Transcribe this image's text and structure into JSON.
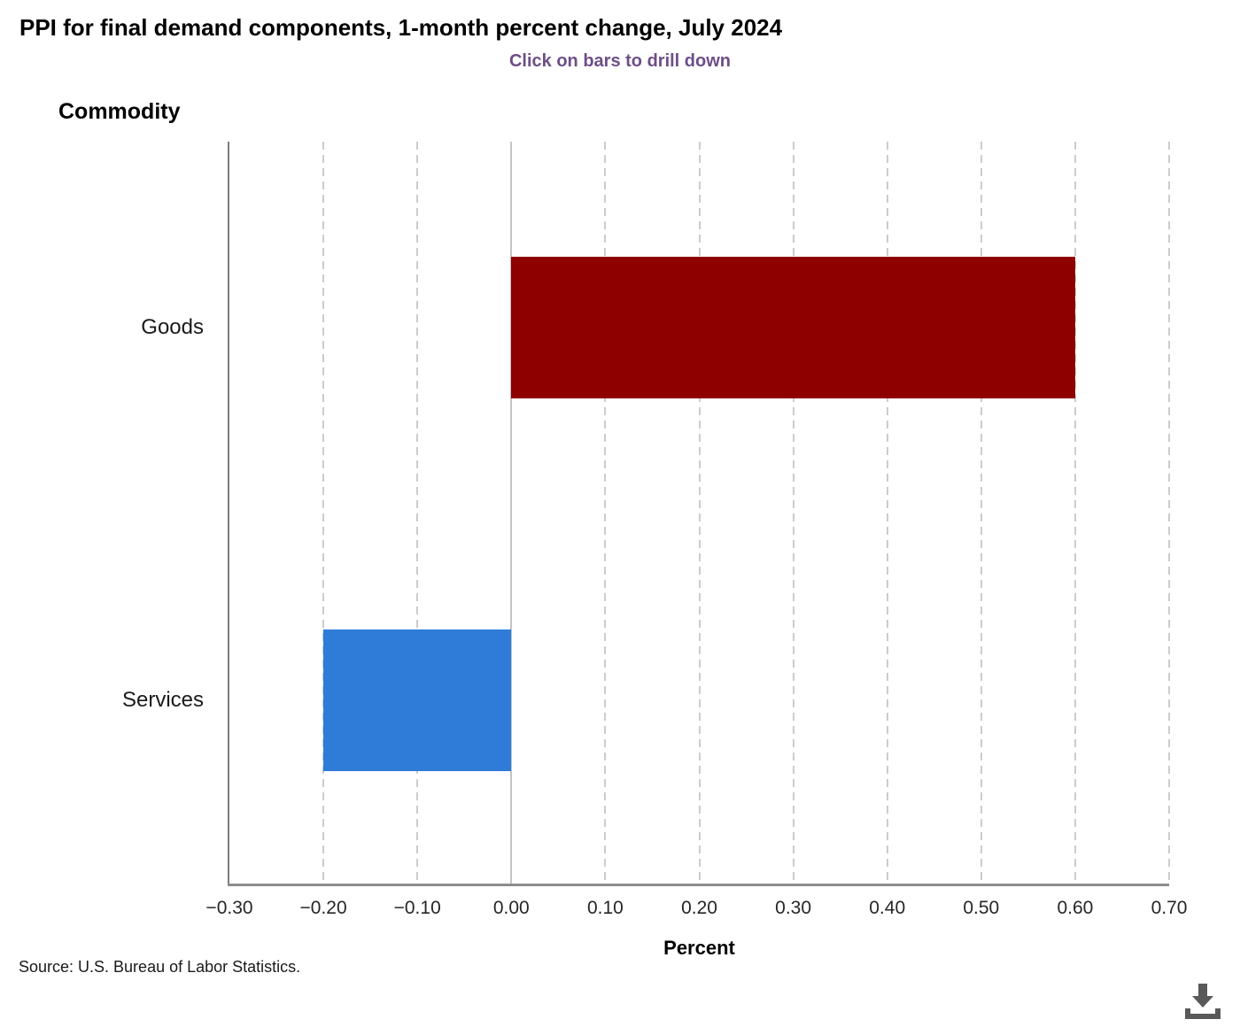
{
  "chart_data": {
    "type": "bar",
    "orientation": "horizontal",
    "title": "PPI for final demand components, 1-month percent change, July 2024",
    "subtitle": "Click on bars to drill down",
    "axis_title": "Commodity",
    "xlabel": "Percent",
    "categories": [
      "Goods",
      "Services"
    ],
    "values": [
      0.6,
      -0.2
    ],
    "bar_colors": [
      "#8e0000",
      "#2e7cd8"
    ],
    "xlim": [
      -0.3,
      0.7
    ],
    "xticks": [
      -0.3,
      -0.2,
      -0.1,
      0.0,
      0.1,
      0.2,
      0.3,
      0.4,
      0.5,
      0.6,
      0.7
    ],
    "xtick_labels": [
      "−0.30",
      "−0.20",
      "−0.10",
      "0.00",
      "0.10",
      "0.20",
      "0.30",
      "0.40",
      "0.50",
      "0.60",
      "0.70"
    ],
    "grid": "vertical dashed gridlines, solid line at zero",
    "legend": "none"
  },
  "footer": {
    "source": "Source: U.S. Bureau of Labor Statistics."
  },
  "icons": {
    "download": "download-icon"
  },
  "colors": {
    "subtitle": "#6e4e87",
    "bar_goods": "#8e0000",
    "bar_services": "#2e7cd8",
    "gridline": "#cccccc",
    "zero_line": "#c4c4c4",
    "axis_left": "#7d7d7d",
    "axis_bottom": "#8c8c8c",
    "download_icon": "#595959"
  }
}
